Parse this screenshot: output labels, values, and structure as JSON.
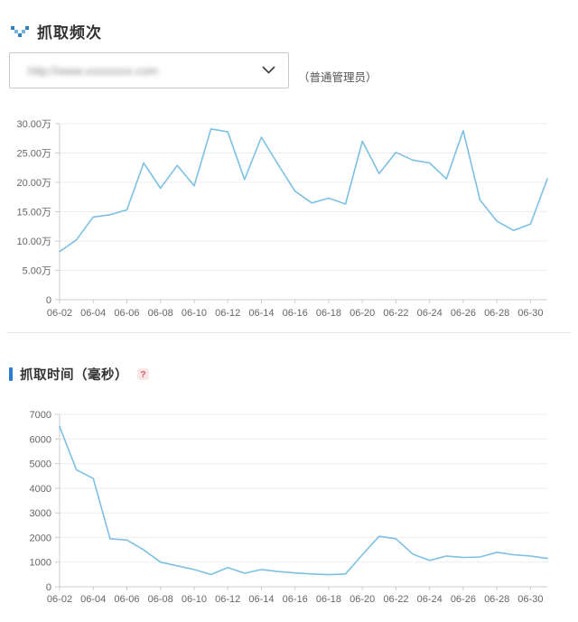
{
  "header": {
    "title": "抓取频次"
  },
  "site_selector": {
    "masked_value": "http://www.xxxxxxxx.com",
    "masked": true,
    "role_note": "（普通管理员）"
  },
  "section2": {
    "title": "抓取时间（毫秒）",
    "help_label": "?"
  },
  "colors": {
    "line": "#7cc0e4",
    "accent_blue": "#2b7cd3",
    "icon_blue_dark": "#2f7fc1",
    "icon_blue_light": "#74b4de",
    "help_red": "#e25a5a",
    "grid": "#ededed",
    "axis": "#cccccc",
    "label": "#666666"
  },
  "chart_data": [
    {
      "type": "line",
      "title": "抓取频次",
      "legend_position": "none",
      "grid": true,
      "y_unit": "万",
      "ylim": [
        0,
        30
      ],
      "ylabel": "",
      "xlabel": "",
      "y_ticks": [
        {
          "v": 0,
          "label": "0"
        },
        {
          "v": 5,
          "label": "5.00万"
        },
        {
          "v": 10,
          "label": "10.00万"
        },
        {
          "v": 15,
          "label": "15.00万"
        },
        {
          "v": 20,
          "label": "20.00万"
        },
        {
          "v": 25,
          "label": "25.00万"
        },
        {
          "v": 30,
          "label": "30.00万"
        }
      ],
      "x": [
        "06-02",
        "06-03",
        "06-04",
        "06-05",
        "06-06",
        "06-07",
        "06-08",
        "06-09",
        "06-10",
        "06-11",
        "06-12",
        "06-13",
        "06-14",
        "06-15",
        "06-16",
        "06-17",
        "06-18",
        "06-19",
        "06-20",
        "06-21",
        "06-22",
        "06-23",
        "06-24",
        "06-25",
        "06-26",
        "06-27",
        "06-28",
        "06-29",
        "06-30",
        "07-01"
      ],
      "x_tick_labels": [
        "06-02",
        "06-04",
        "06-06",
        "06-08",
        "06-10",
        "06-12",
        "06-14",
        "06-16",
        "06-18",
        "06-20",
        "06-22",
        "06-24",
        "06-26",
        "06-28",
        "06-30"
      ],
      "values": [
        8.2,
        10.2,
        14.1,
        14.5,
        15.3,
        23.3,
        19.0,
        22.9,
        19.4,
        29.1,
        28.6,
        20.5,
        27.7,
        23.0,
        18.5,
        16.5,
        17.3,
        16.3,
        27.0,
        21.5,
        25.1,
        23.8,
        23.3,
        20.6,
        28.8,
        17.0,
        13.4,
        11.8,
        12.9,
        20.6
      ]
    },
    {
      "type": "line",
      "title": "抓取时间（毫秒）",
      "legend_position": "none",
      "grid": true,
      "y_unit": "毫秒",
      "ylim": [
        0,
        7000
      ],
      "ylabel": "",
      "xlabel": "",
      "y_ticks": [
        {
          "v": 0,
          "label": "0"
        },
        {
          "v": 1000,
          "label": "1000"
        },
        {
          "v": 2000,
          "label": "2000"
        },
        {
          "v": 3000,
          "label": "3000"
        },
        {
          "v": 4000,
          "label": "4000"
        },
        {
          "v": 5000,
          "label": "5000"
        },
        {
          "v": 6000,
          "label": "6000"
        },
        {
          "v": 7000,
          "label": "7000"
        }
      ],
      "x": [
        "06-02",
        "06-03",
        "06-04",
        "06-05",
        "06-06",
        "06-07",
        "06-08",
        "06-09",
        "06-10",
        "06-11",
        "06-12",
        "06-13",
        "06-14",
        "06-15",
        "06-16",
        "06-17",
        "06-18",
        "06-19",
        "06-20",
        "06-21",
        "06-22",
        "06-23",
        "06-24",
        "06-25",
        "06-26",
        "06-27",
        "06-28",
        "06-29",
        "06-30",
        "07-01"
      ],
      "x_tick_labels": [
        "06-02",
        "06-04",
        "06-06",
        "06-08",
        "06-10",
        "06-12",
        "06-14",
        "06-16",
        "06-18",
        "06-20",
        "06-22",
        "06-24",
        "06-26",
        "06-28",
        "06-30"
      ],
      "values": [
        6500,
        4750,
        4400,
        1950,
        1900,
        1500,
        1000,
        850,
        700,
        500,
        780,
        550,
        700,
        620,
        560,
        520,
        490,
        520,
        1300,
        2050,
        1950,
        1330,
        1070,
        1250,
        1190,
        1210,
        1400,
        1300,
        1250,
        1150
      ]
    }
  ]
}
